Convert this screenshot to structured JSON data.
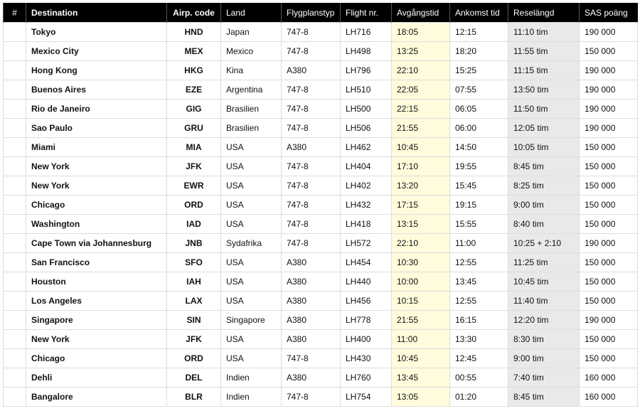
{
  "table": {
    "headers": [
      "#",
      "Destination",
      "Airp. code",
      "Land",
      "Flygplanstyp",
      "Flight nr.",
      "Avgångstid",
      "Ankomst tid",
      "Reselängd",
      "SAS poäng"
    ],
    "rows": [
      [
        "Tokyo",
        "HND",
        "Japan",
        "747-8",
        "LH716",
        "18:05",
        "12:15",
        "11:10 tim",
        "190 000"
      ],
      [
        "Mexico City",
        "MEX",
        "Mexico",
        "747-8",
        "LH498",
        "13:25",
        "18:20",
        "11:55 tim",
        "150 000"
      ],
      [
        "Hong Kong",
        "HKG",
        "Kina",
        "A380",
        "LH796",
        "22:10",
        "15:25",
        "11:15 tim",
        "190 000"
      ],
      [
        "Buenos Aires",
        "EZE",
        "Argentina",
        "747-8",
        "LH510",
        "22:05",
        "07:55",
        "13:50 tim",
        "190 000"
      ],
      [
        "Rio de Janeiro",
        "GIG",
        "Brasilien",
        "747-8",
        "LH500",
        "22:15",
        "06:05",
        "11:50 tim",
        "190 000"
      ],
      [
        "Sao Paulo",
        "GRU",
        "Brasilien",
        "747-8",
        "LH506",
        "21:55",
        "06:00",
        "12:05 tim",
        "190 000"
      ],
      [
        "Miami",
        "MIA",
        "USA",
        "A380",
        "LH462",
        "10:45",
        "14:50",
        "10:05 tim",
        "150 000"
      ],
      [
        "New York",
        "JFK",
        "USA",
        "747-8",
        "LH404",
        "17:10",
        "19:55",
        "8:45 tim",
        "150 000"
      ],
      [
        "New York",
        "EWR",
        "USA",
        "747-8",
        "LH402",
        "13:20",
        "15:45",
        "8:25 tim",
        "150 000"
      ],
      [
        "Chicago",
        "ORD",
        "USA",
        "747-8",
        "LH432",
        "17:15",
        "19:15",
        "9:00 tim",
        "150 000"
      ],
      [
        "Washington",
        "IAD",
        "USA",
        "747-8",
        "LH418",
        "13:15",
        "15:55",
        "8:40 tim",
        "150 000"
      ],
      [
        "Cape Town via Johannesburg",
        "JNB",
        "Sydafrika",
        "747-8",
        "LH572",
        "22:10",
        "11:00",
        "10:25 + 2:10",
        "190 000"
      ],
      [
        "San Francisco",
        "SFO",
        "USA",
        "A380",
        "LH454",
        "10:30",
        "12:55",
        "11:25 tim",
        "150 000"
      ],
      [
        "Houston",
        "IAH",
        "USA",
        "A380",
        "LH440",
        "10:00",
        "13:45",
        "10:45 tim",
        "150 000"
      ],
      [
        "Los Angeles",
        "LAX",
        "USA",
        "A380",
        "LH456",
        "10:15",
        "12:55",
        "11:40 tim",
        "150 000"
      ],
      [
        "Singapore",
        "SIN",
        "Singapore",
        "A380",
        "LH778",
        "21:55",
        "16:15",
        "12:20 tim",
        "190 000"
      ],
      [
        "New York",
        "JFK",
        "USA",
        "A380",
        "LH400",
        "11:00",
        "13:30",
        "8:30 tim",
        "150 000"
      ],
      [
        "Chicago",
        "ORD",
        "USA",
        "747-8",
        "LH430",
        "10:45",
        "12:45",
        "9:00 tim",
        "150 000"
      ],
      [
        "Dehli",
        "DEL",
        "Indien",
        "A380",
        "LH760",
        "13:45",
        "00:55",
        "7:40 tim",
        "160 000"
      ],
      [
        "Bangalore",
        "BLR",
        "Indien",
        "747-8",
        "LH754",
        "13:05",
        "01:20",
        "8:45 tim",
        "160 000"
      ]
    ]
  }
}
